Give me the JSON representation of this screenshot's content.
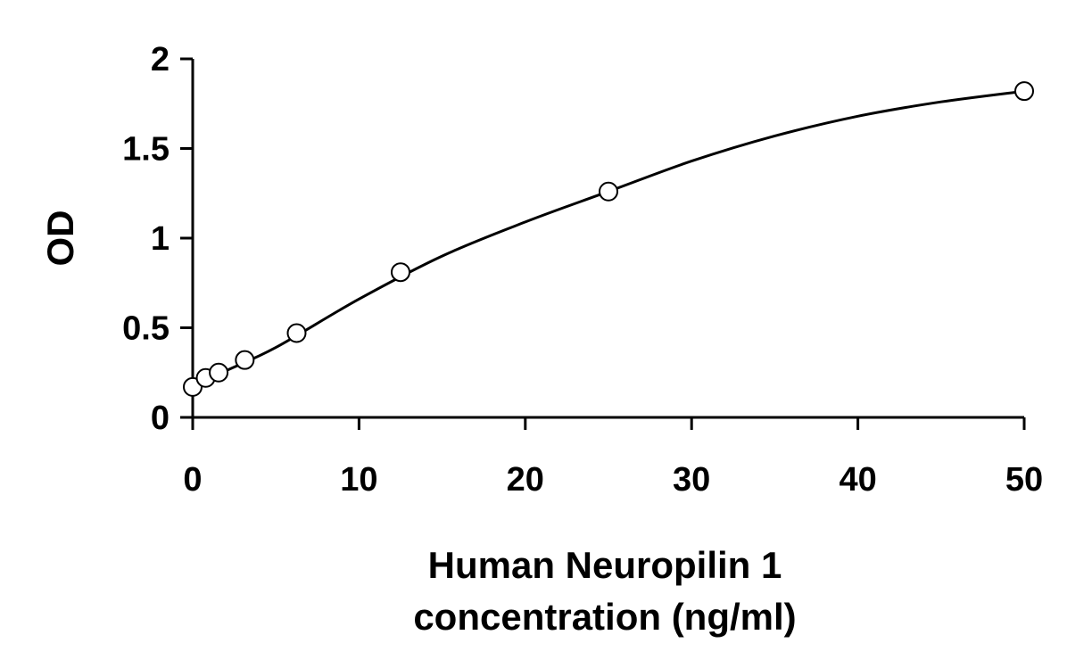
{
  "chart_data": {
    "type": "scatter",
    "title": "",
    "xlabel_lines": [
      "Human Neuropilin 1",
      "concentration (ng/ml)"
    ],
    "ylabel": "OD",
    "xlim": [
      0,
      50
    ],
    "ylim": [
      0,
      2
    ],
    "x_ticks": [
      0,
      10,
      20,
      30,
      40,
      50
    ],
    "y_ticks": [
      0,
      0.5,
      1,
      1.5,
      2
    ],
    "x_tick_labels": [
      "0",
      "10",
      "20",
      "30",
      "40",
      "50"
    ],
    "y_tick_labels": [
      "0",
      "0.5",
      "1",
      "1.5",
      "2"
    ],
    "grid": false,
    "series": [
      {
        "marker": "open-circle",
        "x": [
          0,
          0.78,
          1.56,
          3.13,
          6.25,
          12.5,
          25,
          50
        ],
        "y": [
          0.17,
          0.22,
          0.25,
          0.32,
          0.47,
          0.81,
          1.26,
          1.82
        ]
      }
    ],
    "fit": {
      "type": "curve",
      "x": [
        0,
        2,
        5,
        10,
        15,
        20,
        25,
        30,
        35,
        40,
        45,
        50
      ],
      "y": [
        0.17,
        0.26,
        0.39,
        0.66,
        0.9,
        1.09,
        1.26,
        1.43,
        1.57,
        1.68,
        1.76,
        1.82
      ]
    }
  }
}
